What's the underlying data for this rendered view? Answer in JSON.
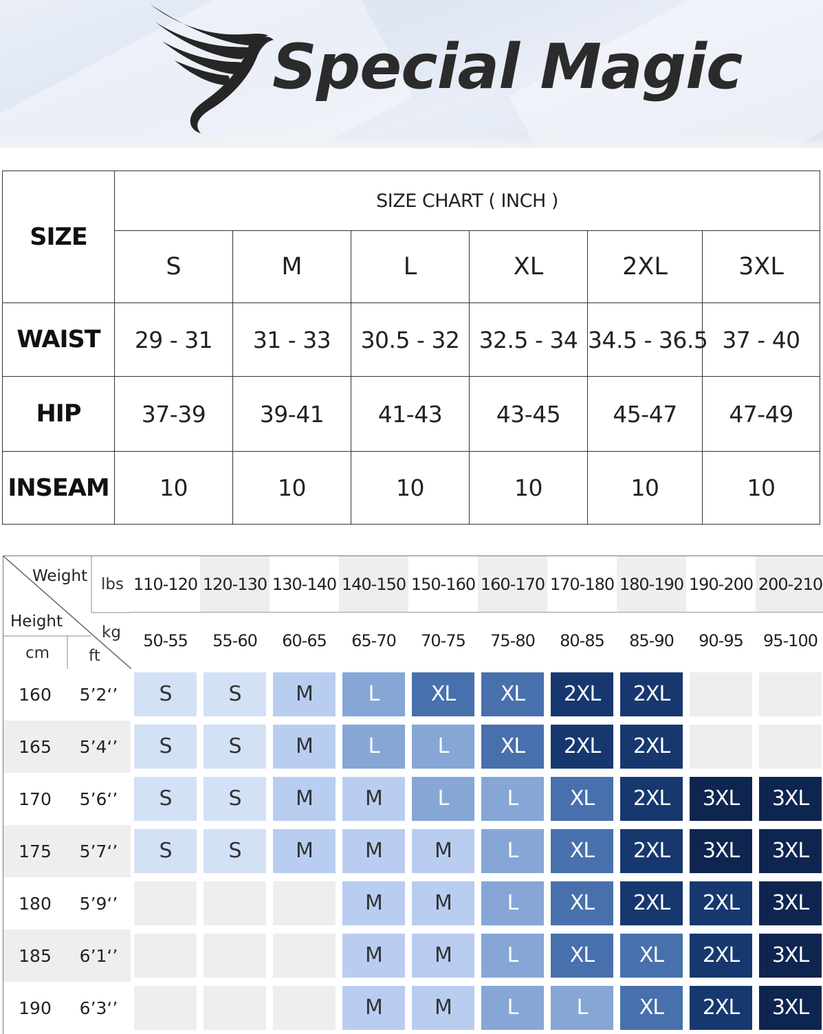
{
  "brand": {
    "name": "Special Magic"
  },
  "size_chart": {
    "size_header": "SIZE",
    "title": "SIZE CHART ( INCH )",
    "sizes": [
      "S",
      "M",
      "L",
      "XL",
      "2XL",
      "3XL"
    ],
    "rows": [
      {
        "label": "WAIST",
        "values": [
          "29 - 31",
          "31 - 33",
          "30.5 - 32",
          "32.5 - 34",
          "34.5 - 36.5",
          "37 - 40"
        ]
      },
      {
        "label": "HIP",
        "values": [
          "37-39",
          "39-41",
          "41-43",
          "43-45",
          "45-47",
          "47-49"
        ]
      },
      {
        "label": "INSEAM",
        "values": [
          "10",
          "10",
          "10",
          "10",
          "10",
          "10"
        ]
      }
    ]
  },
  "fit_chart": {
    "weight_label": "Weight",
    "height_label": "Height",
    "lbs_label": "lbs",
    "kg_label": "kg",
    "cm_label": "cm",
    "ft_label": "ft",
    "lbs": [
      "110-120",
      "120-130",
      "130-140",
      "140-150",
      "150-160",
      "160-170",
      "170-180",
      "180-190",
      "190-200",
      "200-210"
    ],
    "kg": [
      "50-55",
      "55-60",
      "60-65",
      "65-70",
      "70-75",
      "75-80",
      "80-85",
      "85-90",
      "90-95",
      "95-100"
    ],
    "rows": [
      {
        "cm": "160",
        "ft": "5’2‘’",
        "sizes": [
          "S",
          "S",
          "M",
          "L",
          "XL",
          "XL",
          "2XL",
          "2XL",
          "",
          ""
        ]
      },
      {
        "cm": "165",
        "ft": "5’4‘’",
        "sizes": [
          "S",
          "S",
          "M",
          "L",
          "L",
          "XL",
          "2XL",
          "2XL",
          "",
          ""
        ]
      },
      {
        "cm": "170",
        "ft": "5’6‘’",
        "sizes": [
          "S",
          "S",
          "M",
          "M",
          "L",
          "L",
          "XL",
          "2XL",
          "3XL",
          "3XL"
        ]
      },
      {
        "cm": "175",
        "ft": "5’7‘’",
        "sizes": [
          "S",
          "S",
          "M",
          "M",
          "M",
          "L",
          "XL",
          "2XL",
          "3XL",
          "3XL"
        ]
      },
      {
        "cm": "180",
        "ft": "5’9‘’",
        "sizes": [
          "",
          "",
          "",
          "M",
          "M",
          "L",
          "XL",
          "2XL",
          "2XL",
          "3XL"
        ]
      },
      {
        "cm": "185",
        "ft": "6’1‘’",
        "sizes": [
          "",
          "",
          "",
          "M",
          "M",
          "L",
          "XL",
          "XL",
          "2XL",
          "3XL"
        ]
      },
      {
        "cm": "190",
        "ft": "6’3‘’",
        "sizes": [
          "",
          "",
          "",
          "M",
          "M",
          "L",
          "L",
          "XL",
          "2XL",
          "3XL"
        ]
      }
    ],
    "size_colors": {
      "S": "#d3e1f7",
      "M": "#b9cdf1",
      "L": "#86a6d6",
      "XL": "#4870ad",
      "2XL": "#17386f",
      "3XL": "#0e2550",
      "empty": "#eeeeee"
    }
  }
}
